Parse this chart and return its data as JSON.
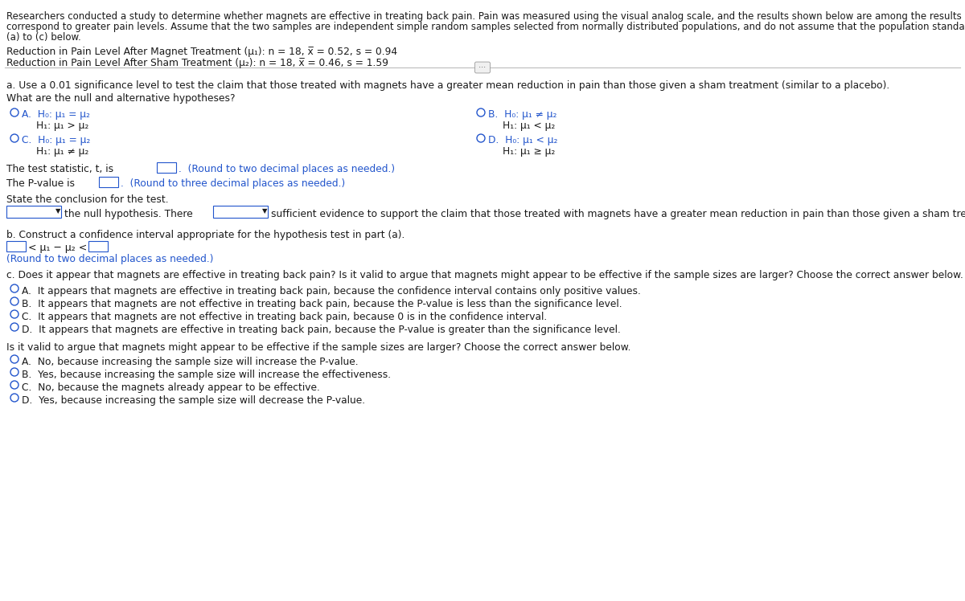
{
  "bg_color": "#ffffff",
  "text_color": "#1a1a1a",
  "blue_color": "#2255cc",
  "intro_line1": "Researchers conducted a study to determine whether magnets are effective in treating back pain. Pain was measured using the visual analog scale, and the results shown below are among the results obtained in the study. Higher scores",
  "intro_line2": "correspond to greater pain levels. Assume that the two samples are independent simple random samples selected from normally distributed populations, and do not assume that the population standard deviations are equal. Complete parts",
  "intro_line3": "(a) to (c) below.",
  "data_line1": "Reduction in Pain Level After Magnet Treatment (μ₁): n = 18, x̅ = 0.52, s = 0.94",
  "data_line2": "Reduction in Pain Level After Sham Treatment (μ₂): n = 18, x̅ = 0.46, s = 1.59",
  "part_a_text": "a. Use a 0.01 significance level to test the claim that those treated with magnets have a greater mean reduction in pain than those given a sham treatment (similar to a placebo).",
  "hyp_question": "What are the null and alternative hypotheses?",
  "optA_h0": "H₀: μ₁ = μ₂",
  "optA_h1": "H₁: μ₁ > μ₂",
  "optB_h0": "H₀: μ₁ ≠ μ₂",
  "optB_h1": "H₁: μ₁ < μ₂",
  "optC_h0": "H₀: μ₁ = μ₂",
  "optC_h1": "H₁: μ₁ ≠ μ₂",
  "optD_h0": "H₀: μ₁ < μ₂",
  "optD_h1": "H₁: μ₁ ≥ μ₂",
  "test_stat_prefix": "The test statistic, t, is",
  "test_stat_suffix": "(Round to two decimal places as needed.)",
  "pvalue_prefix": "The P-value is",
  "pvalue_suffix": "(Round to three decimal places as needed.)",
  "conclusion_label": "State the conclusion for the test.",
  "conclusion_mid": "the null hypothesis. There",
  "conclusion_end": "sufficient evidence to support the claim that those treated with magnets have a greater mean reduction in pain than those given a sham treatment.",
  "part_b_label": "b. Construct a confidence interval appropriate for the hypothesis test in part (a).",
  "ci_mid": "< μ₁ − μ₂ <",
  "ci_round": "(Round to two decimal places as needed.)",
  "part_c_label": "c. Does it appear that magnets are effective in treating back pain? Is it valid to argue that magnets might appear to be effective if the sample sizes are larger? Choose the correct answer below.",
  "cA": "A.  It appears that magnets are effective in treating back pain, because the confidence interval contains only positive values.",
  "cB": "B.  It appears that magnets are not effective in treating back pain, because the P-value is less than the significance level.",
  "cC": "C.  It appears that magnets are not effective in treating back pain, because 0 is in the confidence interval.",
  "cD": "D.  It appears that magnets are effective in treating back pain, because the P-value is greater than the significance level.",
  "valid_question": "Is it valid to argue that magnets might appear to be effective if the sample sizes are larger? Choose the correct answer below.",
  "vA": "A.  No, because increasing the sample size will increase the P-value.",
  "vB": "B.  Yes, because increasing the sample size will increase the effectiveness.",
  "vC": "C.  No, because the magnets already appear to be effective.",
  "vD": "D.  Yes, because increasing the sample size will decrease the P-value."
}
